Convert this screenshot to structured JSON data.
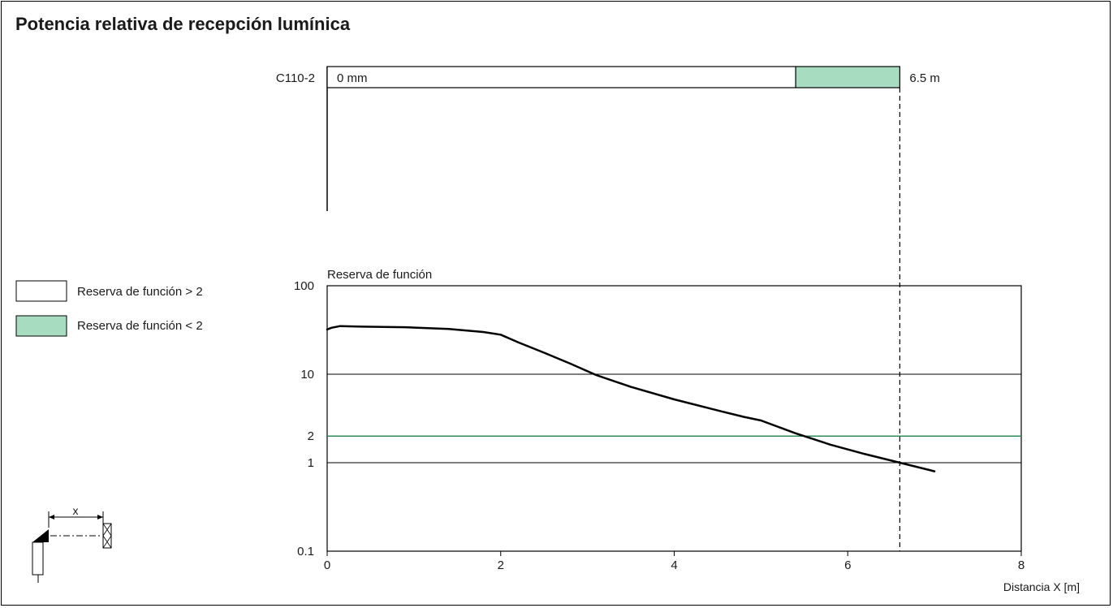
{
  "title": "Potencia relativa de recepción lumínica",
  "colors": {
    "green": "#a8dcc0",
    "threshold_line": "#2e8b57",
    "line": "#000000"
  },
  "range_bar": {
    "model": "C110-2",
    "start_label": "0 mm",
    "end_label": "6.5 m",
    "full_range_end": 6.6,
    "reserve_lt2_start": 5.4
  },
  "legend": {
    "items": [
      {
        "label": "Reserva de función > 2",
        "color": "#ffffff"
      },
      {
        "label": "Reserva de función < 2",
        "color": "#a8dcc0"
      }
    ]
  },
  "chart_data": {
    "type": "line",
    "ylabel": "Reserva de función",
    "xlabel": "Distancia X [m]",
    "xlim": [
      0,
      8
    ],
    "ylim": [
      0.1,
      100
    ],
    "yscale": "log",
    "x_ticks": [
      "0",
      "2",
      "4",
      "6",
      "8"
    ],
    "y_ticks": [
      {
        "value": 0.1,
        "label": "0.1"
      },
      {
        "value": 1,
        "label": "1"
      },
      {
        "value": 2,
        "label": "2"
      },
      {
        "value": 10,
        "label": "10"
      },
      {
        "value": 100,
        "label": "100"
      }
    ],
    "grid": "horizontal",
    "threshold": 2,
    "marker_x": 6.6,
    "series": [
      {
        "x": [
          0,
          0.05,
          0.15,
          0.4,
          0.9,
          1.4,
          1.8,
          2.0,
          2.2,
          2.5,
          2.8,
          3.1,
          3.5,
          4.0,
          4.5,
          4.8,
          5.0,
          5.4,
          5.8,
          6.2,
          6.6,
          7.0
        ],
        "y": [
          32,
          33.5,
          35,
          34.5,
          34,
          32.5,
          30,
          28,
          23,
          17.5,
          13.2,
          9.8,
          7.2,
          5.2,
          3.9,
          3.3,
          3.0,
          2.15,
          1.6,
          1.25,
          1.0,
          0.8
        ]
      }
    ]
  },
  "diagram": {
    "x_label": "x"
  }
}
